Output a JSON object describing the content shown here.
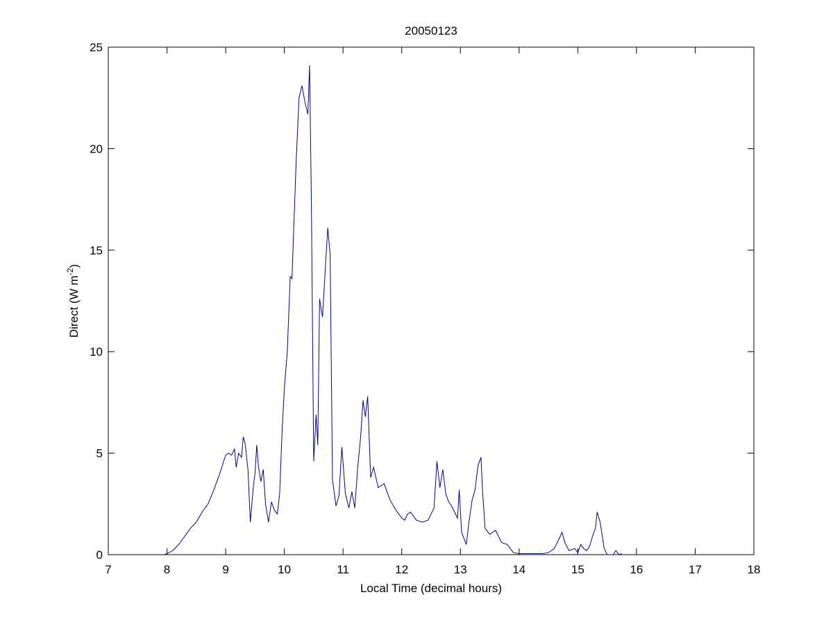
{
  "chart_data": {
    "type": "line",
    "title": "20050123",
    "xlabel": "Local Time (decimal hours)",
    "ylabel": {
      "base": "Direct (W m",
      "superscript": "-2",
      "suffix": ")"
    },
    "xlim": [
      7,
      18
    ],
    "ylim": [
      0,
      25
    ],
    "xticks": [
      "7",
      "8",
      "9",
      "10",
      "11",
      "12",
      "13",
      "14",
      "15",
      "16",
      "17",
      "18"
    ],
    "yticks": [
      "0",
      "5",
      "10",
      "15",
      "20",
      "25"
    ],
    "grid": false,
    "line_color": "#00008b",
    "series": [
      {
        "x": [
          7.95,
          8.0,
          8.1,
          8.2,
          8.3,
          8.4,
          8.5,
          8.6,
          8.7,
          8.8,
          8.9,
          9.0,
          9.05,
          9.1,
          9.15,
          9.18,
          9.22,
          9.27,
          9.3,
          9.33,
          9.38,
          9.42,
          9.47,
          9.5,
          9.53,
          9.56,
          9.6,
          9.64,
          9.68,
          9.73,
          9.78,
          9.83,
          9.88,
          9.92,
          9.96,
          10.0,
          10.05,
          10.1,
          10.13,
          10.2,
          10.25,
          10.3,
          10.35,
          10.4,
          10.43,
          10.46,
          10.5,
          10.54,
          10.57,
          10.6,
          10.65,
          10.7,
          10.74,
          10.78,
          10.82,
          10.88,
          10.93,
          10.98,
          11.04,
          11.1,
          11.15,
          11.2,
          11.25,
          11.3,
          11.34,
          11.38,
          11.42,
          11.47,
          11.52,
          11.6,
          11.7,
          11.8,
          11.9,
          12.0,
          12.05,
          12.1,
          12.15,
          12.25,
          12.35,
          12.45,
          12.55,
          12.6,
          12.65,
          12.7,
          12.75,
          12.8,
          12.85,
          12.9,
          12.95,
          12.98,
          13.02,
          13.1,
          13.15,
          13.2,
          13.25,
          13.3,
          13.35,
          13.38,
          13.42,
          13.5,
          13.6,
          13.7,
          13.8,
          13.85,
          13.9,
          14.0,
          14.2,
          14.4,
          14.5,
          14.6,
          14.7,
          14.73,
          14.78,
          14.85,
          14.95,
          15.0,
          15.05,
          15.1,
          15.15,
          15.2,
          15.25,
          15.3,
          15.33,
          15.38,
          15.45,
          15.5,
          15.6,
          15.65,
          15.7,
          15.75
        ],
        "values": [
          0,
          0.05,
          0.2,
          0.5,
          0.9,
          1.3,
          1.6,
          2.1,
          2.5,
          3.2,
          4.0,
          4.9,
          5.0,
          4.9,
          5.2,
          4.3,
          5.0,
          4.8,
          5.8,
          5.5,
          4.2,
          1.6,
          3.3,
          4.0,
          5.4,
          4.3,
          3.6,
          4.2,
          2.5,
          1.6,
          2.6,
          2.2,
          2.0,
          3.0,
          6.0,
          8.2,
          10.0,
          13.7,
          13.6,
          19.3,
          22.5,
          23.1,
          22.3,
          21.7,
          24.1,
          17.5,
          4.6,
          6.9,
          5.4,
          12.6,
          11.7,
          14.2,
          16.1,
          14.8,
          3.7,
          2.4,
          2.9,
          5.3,
          3.0,
          2.3,
          3.1,
          2.3,
          4.3,
          5.8,
          7.6,
          6.8,
          7.8,
          3.8,
          4.3,
          3.3,
          3.5,
          2.7,
          2.2,
          1.8,
          1.7,
          2.0,
          2.1,
          1.7,
          1.6,
          1.7,
          2.3,
          4.6,
          3.3,
          4.2,
          3.0,
          2.6,
          2.4,
          2.1,
          1.8,
          3.2,
          1.1,
          0.5,
          1.7,
          2.7,
          3.2,
          4.4,
          4.8,
          3.0,
          1.3,
          1.0,
          1.2,
          0.6,
          0.5,
          0.3,
          0.1,
          0.05,
          0.05,
          0.05,
          0.1,
          0.3,
          0.9,
          1.1,
          0.6,
          0.2,
          0.3,
          0.1,
          0.5,
          0.3,
          0.2,
          0.4,
          0.9,
          1.3,
          2.1,
          1.6,
          0.3,
          0.0,
          0.0,
          0.2,
          0.0,
          0.05
        ]
      }
    ]
  }
}
